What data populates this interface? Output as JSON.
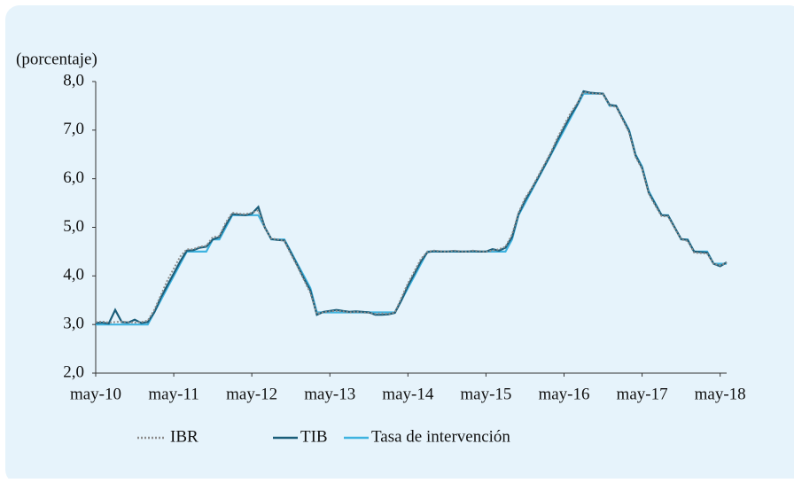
{
  "chart_data": {
    "type": "line",
    "y_label": "(porcentaje)",
    "categories": [
      "may-10",
      null,
      null,
      null,
      null,
      null,
      null,
      null,
      null,
      null,
      null,
      null,
      "may-11",
      null,
      null,
      null,
      null,
      null,
      null,
      null,
      null,
      null,
      null,
      null,
      "may-12",
      null,
      null,
      null,
      null,
      null,
      null,
      null,
      null,
      null,
      null,
      null,
      "may-13",
      null,
      null,
      null,
      null,
      null,
      null,
      null,
      null,
      null,
      null,
      null,
      "may-14",
      null,
      null,
      null,
      null,
      null,
      null,
      null,
      null,
      null,
      null,
      null,
      "may-15",
      null,
      null,
      null,
      null,
      null,
      null,
      null,
      null,
      null,
      null,
      null,
      "may-16",
      null,
      null,
      null,
      null,
      null,
      null,
      null,
      null,
      null,
      null,
      null,
      "may-17",
      null,
      null,
      null,
      null,
      null,
      null,
      null,
      null,
      null,
      null,
      null,
      "may-18",
      null
    ],
    "series": [
      {
        "name": "IBR",
        "color": "#8c8c8c",
        "dash": true,
        "values": [
          3.05,
          3.06,
          3.04,
          3.05,
          3.06,
          3.05,
          3.04,
          3.05,
          3.08,
          3.3,
          3.6,
          3.9,
          4.15,
          4.4,
          4.55,
          4.55,
          4.6,
          4.62,
          4.8,
          4.82,
          5.1,
          5.3,
          5.28,
          5.27,
          5.3,
          5.35,
          4.98,
          4.77,
          4.75,
          4.72,
          4.45,
          4.2,
          3.92,
          3.65,
          3.22,
          3.25,
          3.27,
          3.28,
          3.27,
          3.25,
          3.26,
          3.25,
          3.24,
          3.22,
          3.23,
          3.22,
          3.25,
          3.55,
          3.85,
          4.1,
          4.35,
          4.5,
          4.52,
          4.51,
          4.5,
          4.52,
          4.51,
          4.5,
          4.52,
          4.51,
          4.5,
          4.52,
          4.55,
          4.6,
          4.85,
          5.3,
          5.6,
          5.8,
          6.05,
          6.3,
          6.55,
          6.85,
          7.1,
          7.35,
          7.55,
          7.78,
          7.76,
          7.75,
          7.74,
          7.5,
          7.48,
          7.22,
          6.95,
          6.45,
          6.2,
          5.7,
          5.45,
          5.23,
          5.22,
          4.98,
          4.75,
          4.72,
          4.48,
          4.47,
          4.46,
          4.25,
          4.22,
          4.27
        ]
      },
      {
        "name": "TIB",
        "color": "#1b5e7a",
        "dash": false,
        "values": [
          3.03,
          3.04,
          3.02,
          3.3,
          3.05,
          3.04,
          3.1,
          3.03,
          3.05,
          3.25,
          3.55,
          3.8,
          4.05,
          4.3,
          4.52,
          4.53,
          4.58,
          4.6,
          4.75,
          4.8,
          5.05,
          5.27,
          5.26,
          5.25,
          5.28,
          5.42,
          5,
          4.76,
          4.74,
          4.73,
          4.48,
          4.22,
          3.95,
          3.7,
          3.2,
          3.26,
          3.28,
          3.3,
          3.28,
          3.26,
          3.27,
          3.26,
          3.25,
          3.2,
          3.2,
          3.21,
          3.24,
          3.5,
          3.8,
          4.05,
          4.3,
          4.49,
          4.51,
          4.5,
          4.5,
          4.51,
          4.5,
          4.5,
          4.51,
          4.5,
          4.5,
          4.55,
          4.52,
          4.58,
          4.8,
          5.27,
          5.55,
          5.78,
          6.02,
          6.27,
          6.52,
          6.8,
          7.05,
          7.3,
          7.52,
          7.8,
          7.77,
          7.76,
          7.75,
          7.52,
          7.5,
          7.24,
          6.98,
          6.48,
          6.22,
          5.72,
          5.48,
          5.25,
          5.24,
          5,
          4.76,
          4.74,
          4.5,
          4.49,
          4.48,
          4.25,
          4.2,
          4.28
        ]
      },
      {
        "name": "Tasa de intervención",
        "color": "#3fb3e0",
        "dash": false,
        "values": [
          3,
          3,
          3,
          3,
          3,
          3,
          3,
          3,
          3,
          3.25,
          3.5,
          3.75,
          4,
          4.25,
          4.5,
          4.5,
          4.5,
          4.5,
          4.75,
          4.75,
          5,
          5.25,
          5.25,
          5.25,
          5.25,
          5.25,
          5,
          4.75,
          4.75,
          4.75,
          4.5,
          4.25,
          4,
          3.75,
          3.25,
          3.25,
          3.25,
          3.25,
          3.25,
          3.25,
          3.25,
          3.25,
          3.25,
          3.25,
          3.25,
          3.25,
          3.25,
          3.5,
          3.75,
          4,
          4.25,
          4.5,
          4.5,
          4.5,
          4.5,
          4.5,
          4.5,
          4.5,
          4.5,
          4.5,
          4.5,
          4.5,
          4.5,
          4.5,
          4.75,
          5.25,
          5.5,
          5.75,
          6,
          6.25,
          6.5,
          6.75,
          7,
          7.25,
          7.5,
          7.75,
          7.75,
          7.75,
          7.75,
          7.5,
          7.5,
          7.25,
          7,
          6.5,
          6.25,
          5.75,
          5.5,
          5.25,
          5.25,
          5,
          4.75,
          4.75,
          4.5,
          4.5,
          4.5,
          4.25,
          4.25,
          4.25
        ]
      }
    ],
    "ylim": [
      2,
      8
    ],
    "yticks": [
      {
        "value": 2,
        "label": "2,0"
      },
      {
        "value": 3,
        "label": "3,0"
      },
      {
        "value": 4,
        "label": "4,0"
      },
      {
        "value": 5,
        "label": "5,0"
      },
      {
        "value": 6,
        "label": "6,0"
      },
      {
        "value": 7,
        "label": "7,0"
      },
      {
        "value": 8,
        "label": "8,0"
      }
    ],
    "grid": false
  }
}
